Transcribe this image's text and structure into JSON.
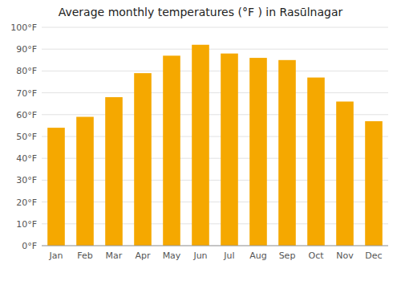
{
  "chart_data": {
    "type": "bar",
    "title": "Average monthly temperatures (°F ) in Rasūlnagar",
    "categories": [
      "Jan",
      "Feb",
      "Mar",
      "Apr",
      "May",
      "Jun",
      "Jul",
      "Aug",
      "Sep",
      "Oct",
      "Nov",
      "Dec"
    ],
    "values": [
      54,
      59,
      68,
      79,
      87,
      92,
      88,
      86,
      85,
      77,
      66,
      57
    ],
    "color": "#F5A800",
    "ylim": [
      0,
      100
    ],
    "yticks": [
      {
        "value": 0,
        "label": "0°F"
      },
      {
        "value": 10,
        "label": "10°F"
      },
      {
        "value": 20,
        "label": "20°F"
      },
      {
        "value": 30,
        "label": "30°F"
      },
      {
        "value": 40,
        "label": "40°F"
      },
      {
        "value": 50,
        "label": "50°F"
      },
      {
        "value": 60,
        "label": "60°F"
      },
      {
        "value": 70,
        "label": "70°F"
      },
      {
        "value": 80,
        "label": "80°F"
      },
      {
        "value": 90,
        "label": "90°F"
      },
      {
        "value": 100,
        "label": "100°F"
      }
    ],
    "grid": true
  }
}
